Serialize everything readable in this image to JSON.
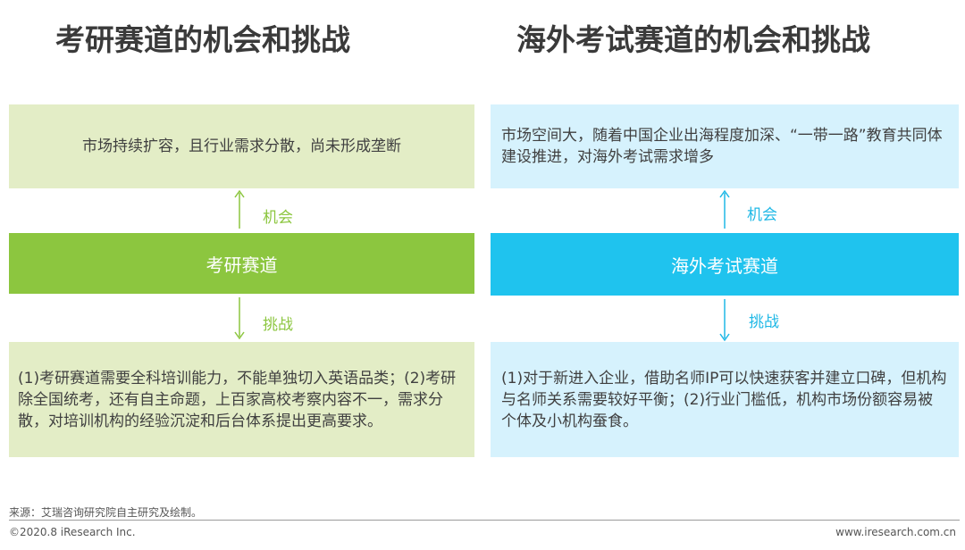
{
  "left": {
    "title": "考研赛道的机会和挑战",
    "opportunity_text": "市场持续扩容，且行业需求分散，尚未形成垄断",
    "opportunity_label": "机会",
    "track_label": "考研赛道",
    "challenge_label": "挑战",
    "challenge_text": "(1)考研赛道需要全科培训能力，不能单独切入英语品类；(2)考研除全国统考，还有自主命题，上百家高校考察内容不一，需求分散，对培训机构的经验沉淀和后台体系提出更高要求。"
  },
  "right": {
    "title": "海外考试赛道的机会和挑战",
    "opportunity_text": "市场空间大，随着中国企业出海程度加深、“一带一路”教育共同体建设推进，对海外考试需求增多",
    "opportunity_label": "机会",
    "track_label": "海外考试赛道",
    "challenge_label": "挑战",
    "challenge_text": "(1)对于新进入企业，借助名师IP可以快速获客并建立口碑，但机构与名师关系需要较好平衡；(2)行业门槛低，机构市场份额容易被个体及小机构蚕食。"
  },
  "footer": {
    "source": "来源：艾瑞咨询研究院自主研究及绘制。",
    "copyright": "©2020.8 iResearch Inc.",
    "website": "www.iresearch.com.cn"
  },
  "colors": {
    "green": "#8cc63f",
    "green_light": "#e3edc6",
    "blue": "#1fc3ee",
    "blue_light": "#d6f2fd"
  }
}
